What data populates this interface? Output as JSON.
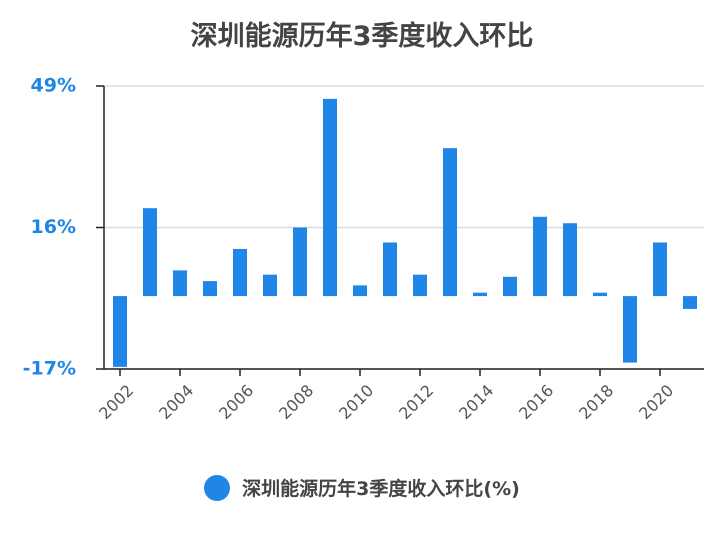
{
  "chart_data": {
    "type": "bar",
    "title": "深圳能源历年3季度收入环比",
    "categories": [
      "2002",
      "2003",
      "2004",
      "2005",
      "2006",
      "2007",
      "2008",
      "2009",
      "2010",
      "2011",
      "2012",
      "2013",
      "2014",
      "2015",
      "2016",
      "2017",
      "2018",
      "2019",
      "2020",
      "2021"
    ],
    "x_tick_labels": [
      "2002",
      "2004",
      "2006",
      "2008",
      "2010",
      "2012",
      "2014",
      "2016",
      "2018",
      "2020"
    ],
    "series": [
      {
        "name": "深圳能源历年3季度收入环比(%)",
        "values": [
          -16.5,
          20.5,
          6.0,
          3.5,
          11.0,
          5.0,
          16.0,
          46.0,
          2.5,
          12.5,
          5.0,
          34.5,
          0.8,
          4.5,
          18.5,
          17.0,
          0.8,
          -15.5,
          12.5,
          -3.0
        ]
      }
    ],
    "yticks": [
      "49%",
      "16%",
      "-17%"
    ],
    "ytick_values": [
      49,
      16,
      -17
    ],
    "ylim": [
      -17,
      49
    ],
    "grid": true,
    "legend_position": "bottom",
    "colors": {
      "bar": "#1f86e8",
      "tick_text": "#1f86e8",
      "grid": "#dddddd",
      "axis": "#222222"
    }
  }
}
